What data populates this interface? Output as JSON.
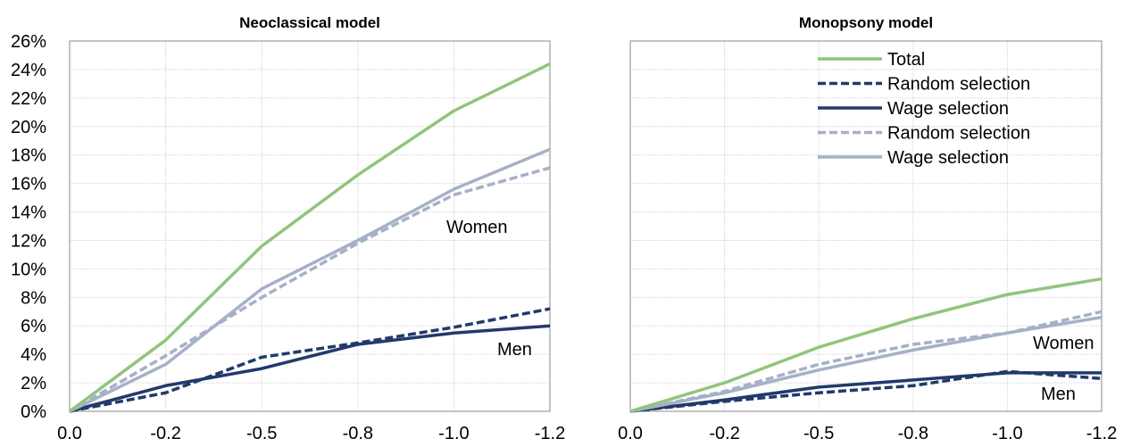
{
  "chart_data": [
    {
      "type": "line",
      "title": "Neoclassical model",
      "x": [
        "0.0",
        "-0.2",
        "-0.5",
        "-0.8",
        "-1.0",
        "-1.2"
      ],
      "ylim": [
        0,
        26
      ],
      "y_ticks": [
        "0%",
        "2%",
        "4%",
        "6%",
        "8%",
        "10%",
        "12%",
        "14%",
        "16%",
        "18%",
        "20%",
        "22%",
        "24%",
        "26%"
      ],
      "grid": true,
      "legend": "none",
      "series": [
        {
          "values": [
            0,
            5.0,
            11.6,
            16.6,
            21.1,
            24.4
          ],
          "color": "#92c47d",
          "dash": false
        },
        {
          "values": [
            0,
            3.9,
            8.0,
            11.8,
            15.2,
            17.1
          ],
          "color": "#a6b0c8",
          "dash": true
        },
        {
          "values": [
            0,
            3.3,
            8.6,
            12.0,
            15.6,
            18.4
          ],
          "color": "#a6b0c8",
          "dash": false
        },
        {
          "values": [
            0,
            1.3,
            3.8,
            4.8,
            5.9,
            7.2
          ],
          "color": "#213a6b",
          "dash": true
        },
        {
          "values": [
            0,
            1.8,
            3.0,
            4.7,
            5.5,
            6.0
          ],
          "color": "#213a6b",
          "dash": false
        }
      ],
      "annotations": [
        "Women",
        "Men"
      ]
    },
    {
      "type": "line",
      "title": "Monopsony model",
      "x": [
        "0.0",
        "-0.2",
        "-0.5",
        "-0.8",
        "-1.0",
        "-1.2"
      ],
      "ylim": [
        0,
        26
      ],
      "grid": true,
      "legend": "top-right",
      "legend_entries": [
        {
          "name": "Total",
          "color": "#92c47d",
          "dash": false
        },
        {
          "name": "Random selection",
          "color": "#213a6b",
          "dash": true
        },
        {
          "name": "Wage selection",
          "color": "#213a6b",
          "dash": false
        },
        {
          "name": "Random selection",
          "color": "#a6b0c8",
          "dash": true
        },
        {
          "name": "Wage selection",
          "color": "#a6b0c8",
          "dash": false
        }
      ],
      "series": [
        {
          "values": [
            0,
            2.0,
            4.5,
            6.5,
            8.2,
            9.3
          ],
          "color": "#92c47d",
          "dash": false
        },
        {
          "values": [
            0,
            1.4,
            3.3,
            4.7,
            5.5,
            7.0
          ],
          "color": "#a6b0c8",
          "dash": true
        },
        {
          "values": [
            0,
            1.3,
            2.9,
            4.3,
            5.5,
            6.6
          ],
          "color": "#a6b0c8",
          "dash": false
        },
        {
          "values": [
            0,
            0.7,
            1.3,
            1.8,
            2.8,
            2.3
          ],
          "color": "#213a6b",
          "dash": true
        },
        {
          "values": [
            0,
            0.8,
            1.7,
            2.2,
            2.7,
            2.7
          ],
          "color": "#213a6b",
          "dash": false
        }
      ],
      "annotations": [
        "Women",
        "Men"
      ]
    }
  ]
}
